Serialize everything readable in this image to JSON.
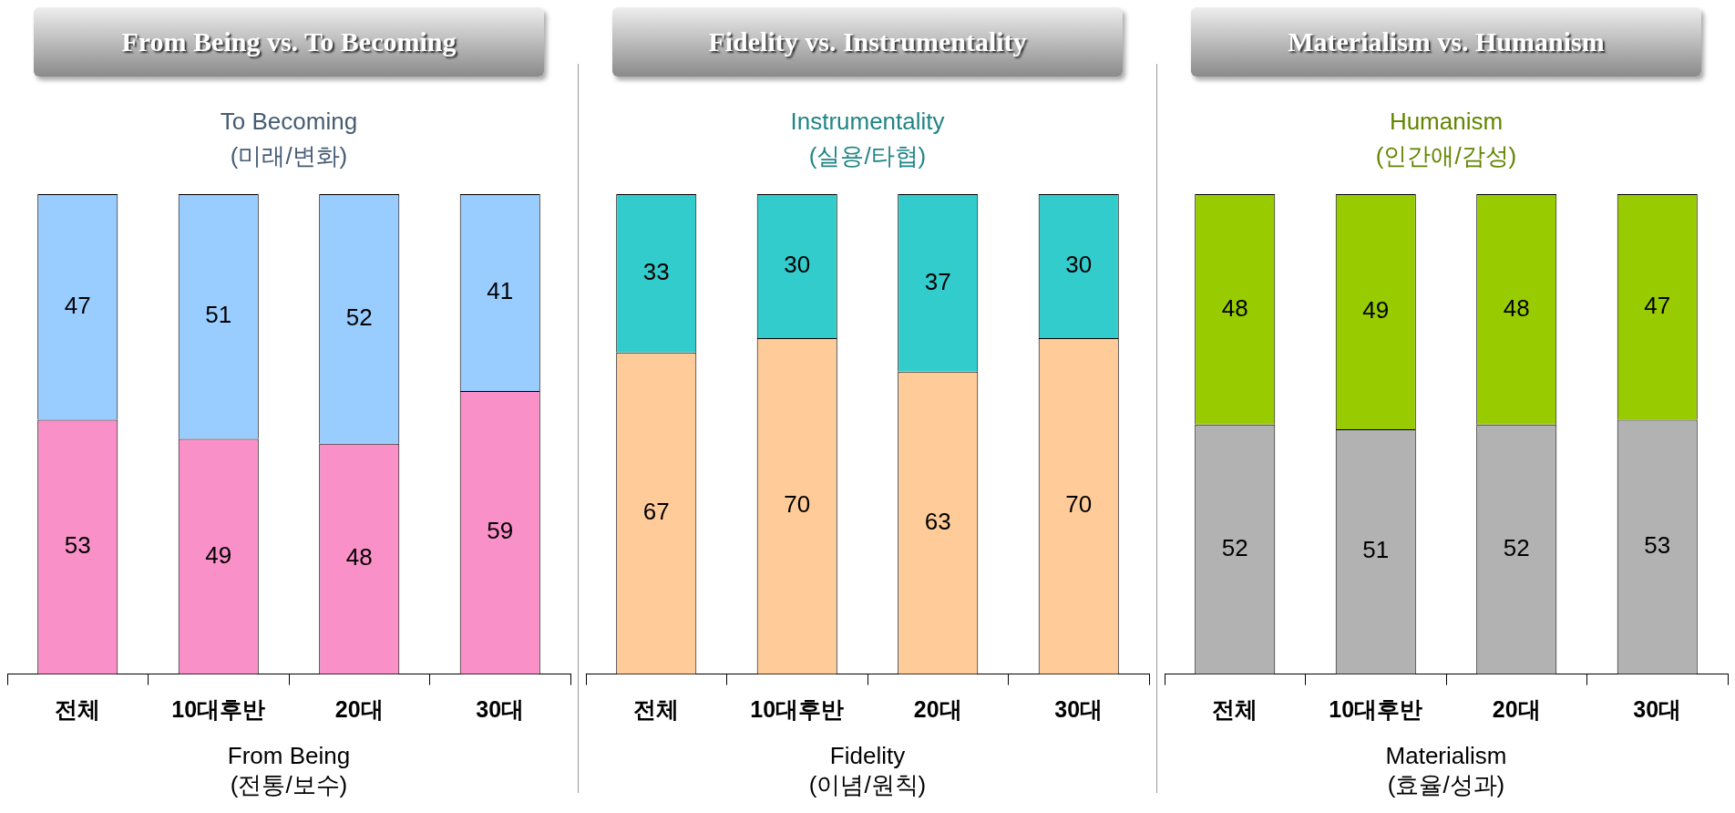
{
  "chart_data": [
    {
      "type": "bar",
      "stacked": true,
      "title": "From Being vs. To Becoming",
      "xlabel": "From Being\n(전통/보수)",
      "categories": [
        "전체",
        "10대후반",
        "20대",
        "30대"
      ],
      "series": [
        {
          "color": "#f990c8",
          "values": [
            53,
            49,
            48,
            59
          ]
        },
        {
          "name": "To Becoming\n(미래/변화)",
          "color": "#99ccff",
          "values": [
            47,
            51,
            52,
            41
          ]
        }
      ],
      "ylim": [
        0,
        100
      ],
      "data_labels": true,
      "grid": false,
      "legend": false,
      "tick_labels": "x"
    },
    {
      "type": "bar",
      "stacked": true,
      "title": "Fidelity vs. Instrumentality",
      "xlabel": "Fidelity\n(이념/원칙)",
      "categories": [
        "전체",
        "10대후반",
        "20대",
        "30대"
      ],
      "series": [
        {
          "color": "#ffcc99",
          "values": [
            67,
            70,
            63,
            70
          ]
        },
        {
          "name": "Instrumentality\n(실용/타협)",
          "color": "#33cccc",
          "values": [
            33,
            30,
            37,
            30
          ]
        }
      ],
      "ylim": [
        0,
        100
      ],
      "data_labels": true,
      "grid": false,
      "legend": false,
      "tick_labels": "x"
    },
    {
      "type": "bar",
      "stacked": true,
      "title": "Materialism vs. Humanism",
      "xlabel": "Materialism\n(효율/성과)",
      "categories": [
        "전체",
        "10대후반",
        "20대",
        "30대"
      ],
      "series": [
        {
          "color": "#b2b2b2",
          "values": [
            52,
            51,
            52,
            53
          ]
        },
        {
          "name": "Humanism\n(인간애/감성)",
          "color": "#99cc00",
          "values": [
            48,
            49,
            48,
            47
          ]
        }
      ],
      "ylim": [
        0,
        100
      ],
      "data_labels": true,
      "grid": false,
      "legend": false,
      "tick_labels": "x"
    }
  ]
}
